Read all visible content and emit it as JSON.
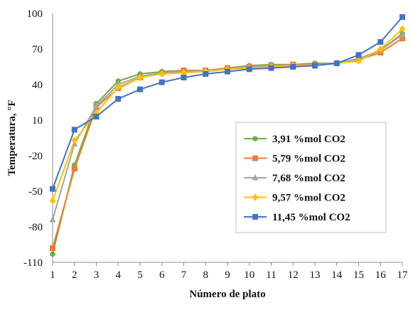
{
  "chart_data": {
    "type": "line",
    "title": "",
    "xlabel": "Número de plato",
    "ylabel": "Temperatura, °F",
    "x": [
      1,
      2,
      3,
      4,
      5,
      6,
      7,
      8,
      9,
      10,
      11,
      12,
      13,
      14,
      15,
      16,
      17
    ],
    "xlim": [
      1,
      17
    ],
    "ylim": [
      -110,
      100
    ],
    "yticks": [
      -110,
      -80,
      -50,
      -20,
      10,
      40,
      70,
      100
    ],
    "grid": false,
    "legend_position": "right",
    "series": [
      {
        "name": "3,91 %mol CO2",
        "color": "#70ad47",
        "marker": "circle",
        "values": [
          -103,
          -28,
          24,
          43,
          49,
          51,
          52,
          52,
          54,
          56,
          57,
          57,
          58,
          58,
          61,
          69,
          83
        ]
      },
      {
        "name": "5,79 %mol CO2",
        "color": "#ed7d31",
        "marker": "square",
        "values": [
          -98,
          -31,
          21,
          37,
          46,
          50,
          52,
          52,
          54,
          55,
          56,
          57,
          57,
          58,
          61,
          67,
          79
        ]
      },
      {
        "name": "7,68 %mol CO2",
        "color": "#a5a5a5",
        "marker": "triangle",
        "values": [
          -74,
          -10,
          22,
          40,
          47,
          50,
          51,
          52,
          53,
          55,
          56,
          56,
          57,
          58,
          62,
          69,
          82
        ]
      },
      {
        "name": "9,57 %mol CO2",
        "color": "#ffc000",
        "marker": "diamond",
        "values": [
          -58,
          -7,
          16,
          38,
          46,
          49,
          50,
          51,
          53,
          54,
          55,
          56,
          56,
          58,
          60,
          70,
          87
        ]
      },
      {
        "name": "11,45 %mol CO2",
        "color": "#4472c4",
        "marker": "square",
        "values": [
          -48,
          2,
          13,
          28,
          36,
          42,
          46,
          49,
          51,
          53,
          54,
          55,
          56,
          58,
          65,
          76,
          97
        ]
      }
    ]
  }
}
